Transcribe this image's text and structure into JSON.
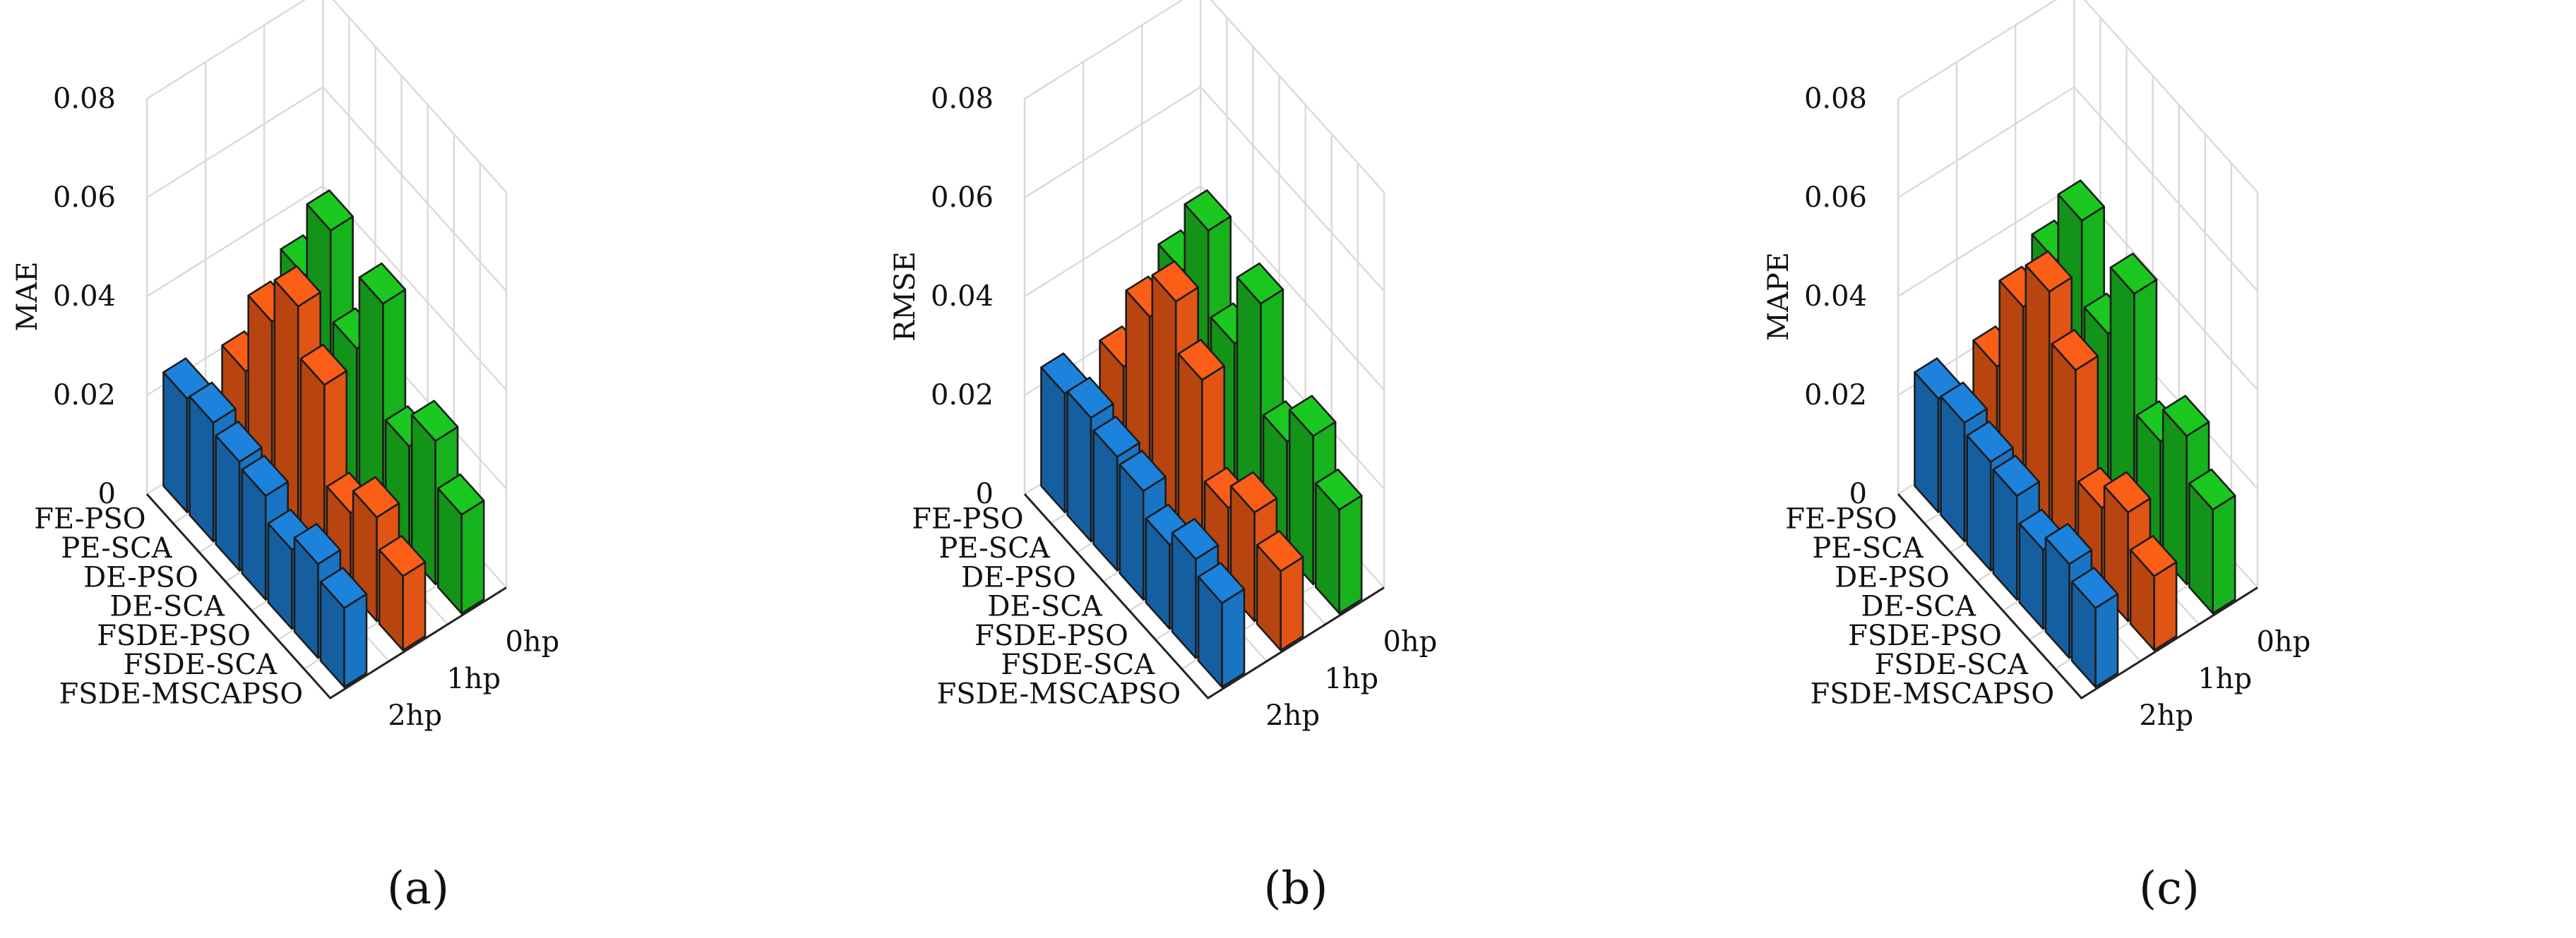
{
  "figure": {
    "colors": {
      "0hp": "#17b31c",
      "1hp": "#e05414",
      "2hp": "#1a74c4"
    }
  },
  "chart_data": [
    {
      "type": "bar3d",
      "caption": "(a)",
      "zlabel": "MAE",
      "zlim": [
        0,
        0.08
      ],
      "zticks": [
        "0",
        "0.02",
        "0.04",
        "0.06",
        "0.08"
      ],
      "categories": [
        "FE-PSO",
        "PE-SCA",
        "DE-PSO",
        "DE-SCA",
        "FSDE-PSO",
        "FSDE-SCA",
        "FSDE-MSCAPSO"
      ],
      "loads": [
        "0hp",
        "1hp",
        "2hp"
      ],
      "series": [
        {
          "name": "0hp",
          "values": [
            0.033,
            0.048,
            0.03,
            0.045,
            0.022,
            0.029,
            0.02
          ]
        },
        {
          "name": "1hp",
          "values": [
            0.021,
            0.037,
            0.046,
            0.036,
            0.016,
            0.021,
            0.015
          ]
        },
        {
          "name": "2hp",
          "values": [
            0.023,
            0.024,
            0.022,
            0.021,
            0.016,
            0.019,
            0.016
          ]
        }
      ]
    },
    {
      "type": "bar3d",
      "caption": "(b)",
      "zlabel": "RMSE",
      "zlim": [
        0,
        0.08
      ],
      "zticks": [
        "0",
        "0.02",
        "0.04",
        "0.06",
        "0.08"
      ],
      "categories": [
        "FE-PSO",
        "PE-SCA",
        "DE-PSO",
        "DE-SCA",
        "FSDE-PSO",
        "FSDE-SCA",
        "FSDE-MSCAPSO"
      ],
      "loads": [
        "0hp",
        "1hp",
        "2hp"
      ],
      "series": [
        {
          "name": "0hp",
          "values": [
            0.034,
            0.048,
            0.031,
            0.045,
            0.023,
            0.03,
            0.021
          ]
        },
        {
          "name": "1hp",
          "values": [
            0.022,
            0.038,
            0.047,
            0.037,
            0.017,
            0.022,
            0.016
          ]
        },
        {
          "name": "2hp",
          "values": [
            0.024,
            0.025,
            0.023,
            0.022,
            0.017,
            0.02,
            0.017
          ]
        }
      ]
    },
    {
      "type": "bar3d",
      "caption": "(c)",
      "zlabel": "MAPE",
      "zlim": [
        0,
        0.08
      ],
      "zticks": [
        "0",
        "0.02",
        "0.04",
        "0.06",
        "0.08"
      ],
      "categories": [
        "FE-PSO",
        "PE-SCA",
        "DE-PSO",
        "DE-SCA",
        "FSDE-PSO",
        "FSDE-SCA",
        "FSDE-MSCAPSO"
      ],
      "loads": [
        "0hp",
        "1hp",
        "2hp"
      ],
      "series": [
        {
          "name": "0hp",
          "values": [
            0.036,
            0.05,
            0.033,
            0.047,
            0.023,
            0.03,
            0.021
          ]
        },
        {
          "name": "1hp",
          "values": [
            0.022,
            0.04,
            0.049,
            0.039,
            0.017,
            0.022,
            0.015
          ]
        },
        {
          "name": "2hp",
          "values": [
            0.023,
            0.024,
            0.022,
            0.021,
            0.016,
            0.019,
            0.016
          ]
        }
      ]
    }
  ]
}
